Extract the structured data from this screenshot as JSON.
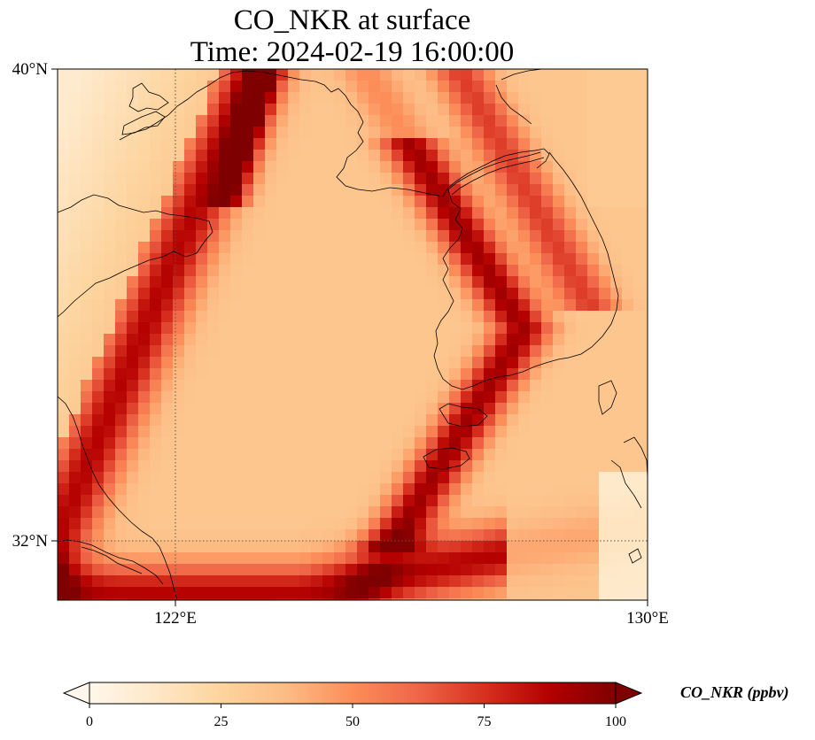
{
  "title": {
    "line1": "CO_NKR at surface",
    "line2": "Time: 2024-02-19 16:00:00"
  },
  "map": {
    "lat_range": [
      31,
      40
    ],
    "lon_range": [
      120,
      130
    ],
    "lat_ticks": [
      {
        "value": 40,
        "label": "40°N"
      },
      {
        "value": 32,
        "label": "32°N"
      }
    ],
    "lon_ticks": [
      {
        "value": 122,
        "label": "122°E"
      },
      {
        "value": 130,
        "label": "130°E"
      }
    ],
    "gridlines": [
      {
        "axis": "lon",
        "value": 122
      },
      {
        "axis": "lat",
        "value": 32
      }
    ],
    "colormap": "OrRd"
  },
  "colorbar": {
    "ticks": [
      "0",
      "25",
      "50",
      "75",
      "100"
    ],
    "range": [
      0,
      100
    ],
    "extend": "both",
    "unit_label": "CO_NKR (ppbv)",
    "colors": [
      "#fff7ec",
      "#fee8c8",
      "#fdd49e",
      "#fdbb84",
      "#fc8d59",
      "#ef6548",
      "#d7301f",
      "#b30000",
      "#7f0000"
    ]
  }
}
